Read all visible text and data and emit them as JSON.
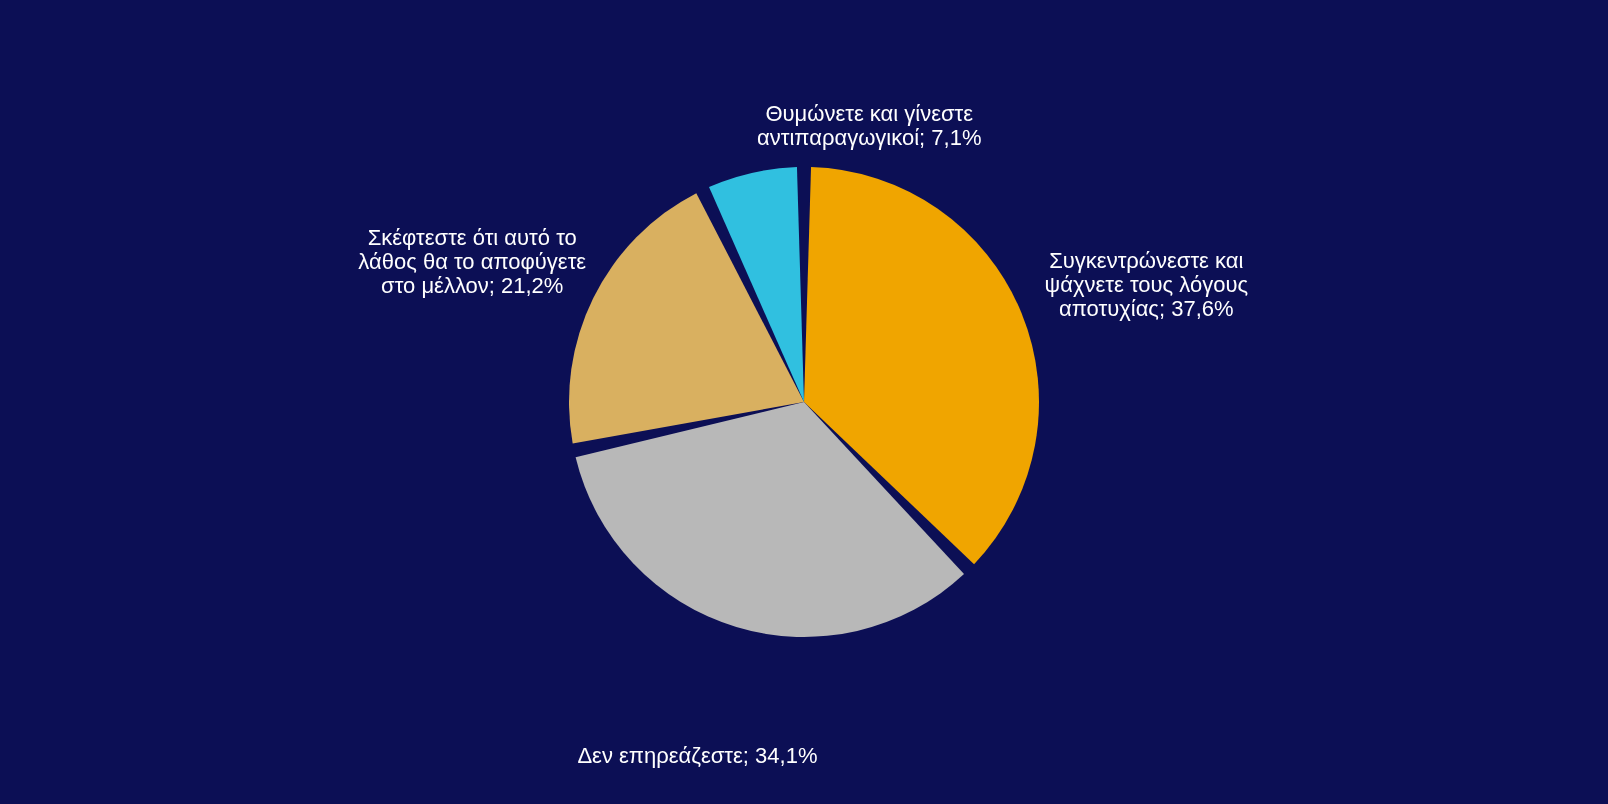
{
  "chart_data": {
    "type": "pie",
    "categories": [
      "Συγκεντρώνεστε και ψάχνετε τους λόγους αποτυχίας; 37,6%",
      "Δεν επηρεάζεστε; 34,1%",
      "Σκέφτεστε ότι αυτό το λάθος θα το αποφύγετε στο μέλλον; 21,2%",
      "Θυμώνετε και γίνεστε αντιπαραγωγικοί; 7,1%"
    ],
    "values": [
      37.6,
      34.1,
      21.2,
      7.1
    ],
    "colors": [
      "#f0a500",
      "#b8b8b8",
      "#d9b060",
      "#30c0e0"
    ],
    "legend": false
  }
}
